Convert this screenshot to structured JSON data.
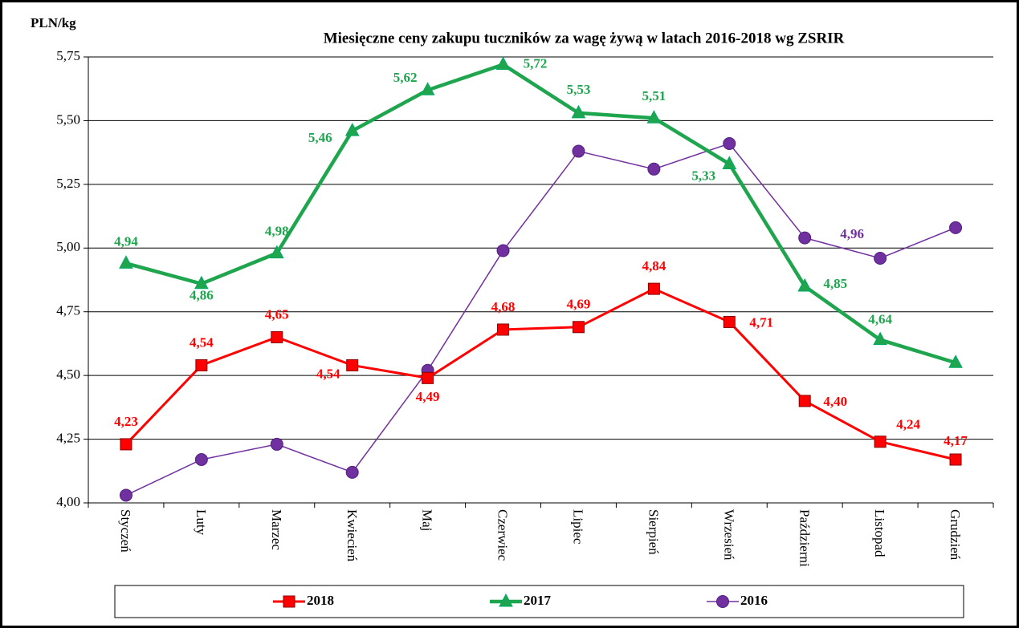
{
  "chart_data": {
    "type": "line",
    "title": "Miesięczne ceny zakupu tuczników za wagę żywą w latach 2016-2018 wg ZSRIR",
    "y_label": "PLN/kg",
    "categories": [
      "Styczeń",
      "Luty",
      "Marzec",
      "Kwiecień",
      "Maj",
      "Czerwiec",
      "Lipiec",
      "Sierpień",
      "Wrzesień",
      "Październi",
      "Listopad",
      "Grudzień"
    ],
    "series": [
      {
        "name": "2018",
        "color": "#ff0000",
        "marker": "square",
        "values": [
          4.23,
          4.54,
          4.65,
          4.54,
          4.49,
          4.68,
          4.69,
          4.84,
          4.71,
          4.4,
          4.24,
          4.17
        ],
        "value_labels": [
          "4,23",
          "4,54",
          "4,65",
          "4,54",
          "4,49",
          "4,68",
          "4,69",
          "4,84",
          "4,71",
          "4,40",
          "4,24",
          "4,17"
        ]
      },
      {
        "name": "2017",
        "color": "#1ea54e",
        "marker": "triangle",
        "values": [
          4.94,
          4.86,
          4.98,
          5.46,
          5.62,
          5.72,
          5.53,
          5.51,
          5.33,
          4.85,
          4.64,
          4.55
        ],
        "value_labels": [
          "4,94",
          "4,86",
          "4,98",
          "5,46",
          "5,62",
          "5,72",
          "5,53",
          "5,51",
          "5,33",
          "4,85",
          "4,64",
          null
        ]
      },
      {
        "name": "2016",
        "color": "#7030a0",
        "marker": "circle",
        "values": [
          4.03,
          4.17,
          4.23,
          4.12,
          4.52,
          4.99,
          5.38,
          5.31,
          5.41,
          5.04,
          4.96,
          5.08
        ],
        "value_labels": [
          null,
          null,
          null,
          null,
          null,
          null,
          null,
          null,
          null,
          null,
          "4,96",
          null
        ]
      }
    ],
    "ylim": [
      4.0,
      5.75
    ],
    "yticks": [
      {
        "value": 4.0,
        "label": "4,00"
      },
      {
        "value": 4.25,
        "label": "4,25"
      },
      {
        "value": 4.5,
        "label": "4,50"
      },
      {
        "value": 4.75,
        "label": "4,75"
      },
      {
        "value": 5.0,
        "label": "5,00"
      },
      {
        "value": 5.25,
        "label": "5,25"
      },
      {
        "value": 5.5,
        "label": "5,50"
      },
      {
        "value": 5.75,
        "label": "5,75"
      }
    ],
    "grid": true,
    "legend": "bottom"
  }
}
